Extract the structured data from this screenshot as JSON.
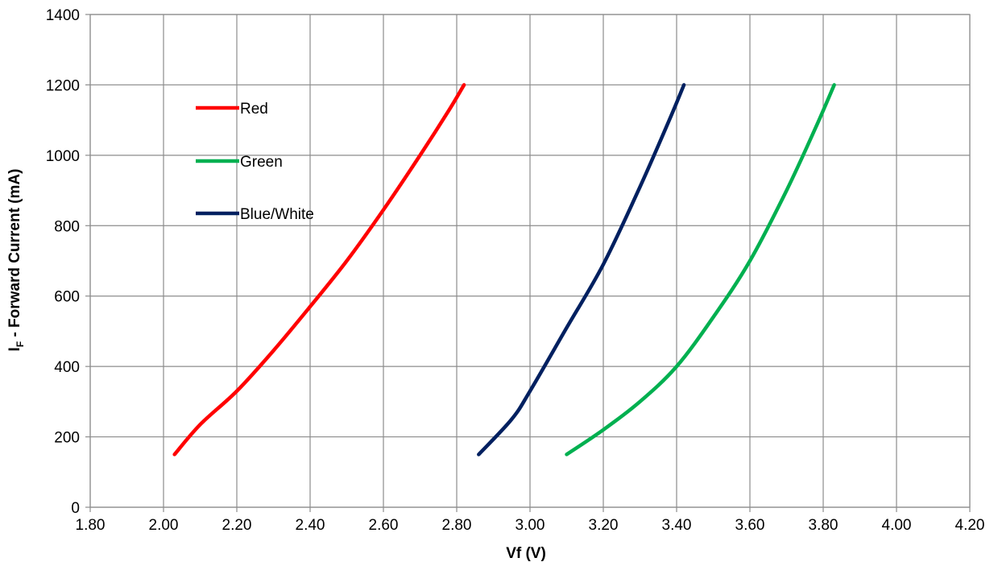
{
  "chart_data": {
    "type": "line",
    "title": "",
    "xlabel": "Vf (V)",
    "ylabel": "I",
    "ylabel_subscript": "F",
    "ylabel_rest": " - Forward Current (mA)",
    "xlim": [
      1.8,
      4.2
    ],
    "ylim": [
      0,
      1400
    ],
    "x_ticks": [
      "1.80",
      "2.00",
      "2.20",
      "2.40",
      "2.60",
      "2.80",
      "3.00",
      "3.20",
      "3.40",
      "3.60",
      "3.80",
      "4.00",
      "4.20"
    ],
    "y_ticks": [
      "0",
      "200",
      "400",
      "600",
      "800",
      "1000",
      "1200",
      "1400"
    ],
    "grid": true,
    "legend_position": "upper-left inside plot",
    "series": [
      {
        "name": "Red",
        "color": "#ff0000",
        "points": [
          [
            2.03,
            150
          ],
          [
            2.1,
            235
          ],
          [
            2.2,
            330
          ],
          [
            2.3,
            445
          ],
          [
            2.4,
            570
          ],
          [
            2.5,
            700
          ],
          [
            2.6,
            845
          ],
          [
            2.7,
            1000
          ],
          [
            2.78,
            1130
          ],
          [
            2.82,
            1200
          ]
        ]
      },
      {
        "name": "Green",
        "color": "#00b050",
        "points": [
          [
            3.1,
            150
          ],
          [
            3.2,
            220
          ],
          [
            3.3,
            300
          ],
          [
            3.4,
            400
          ],
          [
            3.5,
            540
          ],
          [
            3.6,
            700
          ],
          [
            3.7,
            900
          ],
          [
            3.78,
            1080
          ],
          [
            3.83,
            1200
          ]
        ]
      },
      {
        "name": "Blue/White",
        "color": "#002060",
        "points": [
          [
            2.86,
            150
          ],
          [
            2.95,
            250
          ],
          [
            3.0,
            330
          ],
          [
            3.1,
            510
          ],
          [
            3.2,
            690
          ],
          [
            3.3,
            910
          ],
          [
            3.38,
            1100
          ],
          [
            3.42,
            1200
          ]
        ]
      }
    ]
  }
}
